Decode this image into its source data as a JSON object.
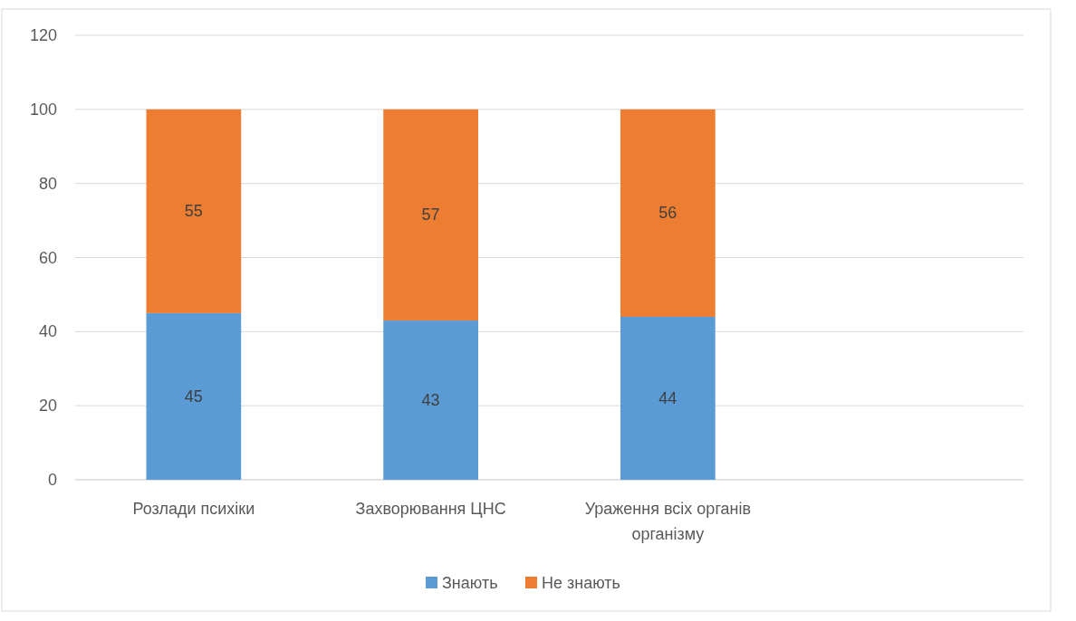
{
  "chart_data": {
    "type": "bar",
    "stacked": true,
    "categories": [
      "Розлади психіки",
      "Захворювання ЦНС",
      "Ураження всіх органів організму",
      null
    ],
    "series": [
      {
        "name": "Знають",
        "color": "#5b9bd5",
        "values": [
          45,
          43,
          44,
          null
        ]
      },
      {
        "name": "Не знають",
        "color": "#ed7d31",
        "values": [
          55,
          57,
          56,
          null
        ]
      }
    ],
    "ylim": [
      0,
      120
    ],
    "yticks": [
      0,
      20,
      40,
      60,
      80,
      100,
      120
    ],
    "grid": "y",
    "legend": "bottom",
    "data_labels": true
  }
}
